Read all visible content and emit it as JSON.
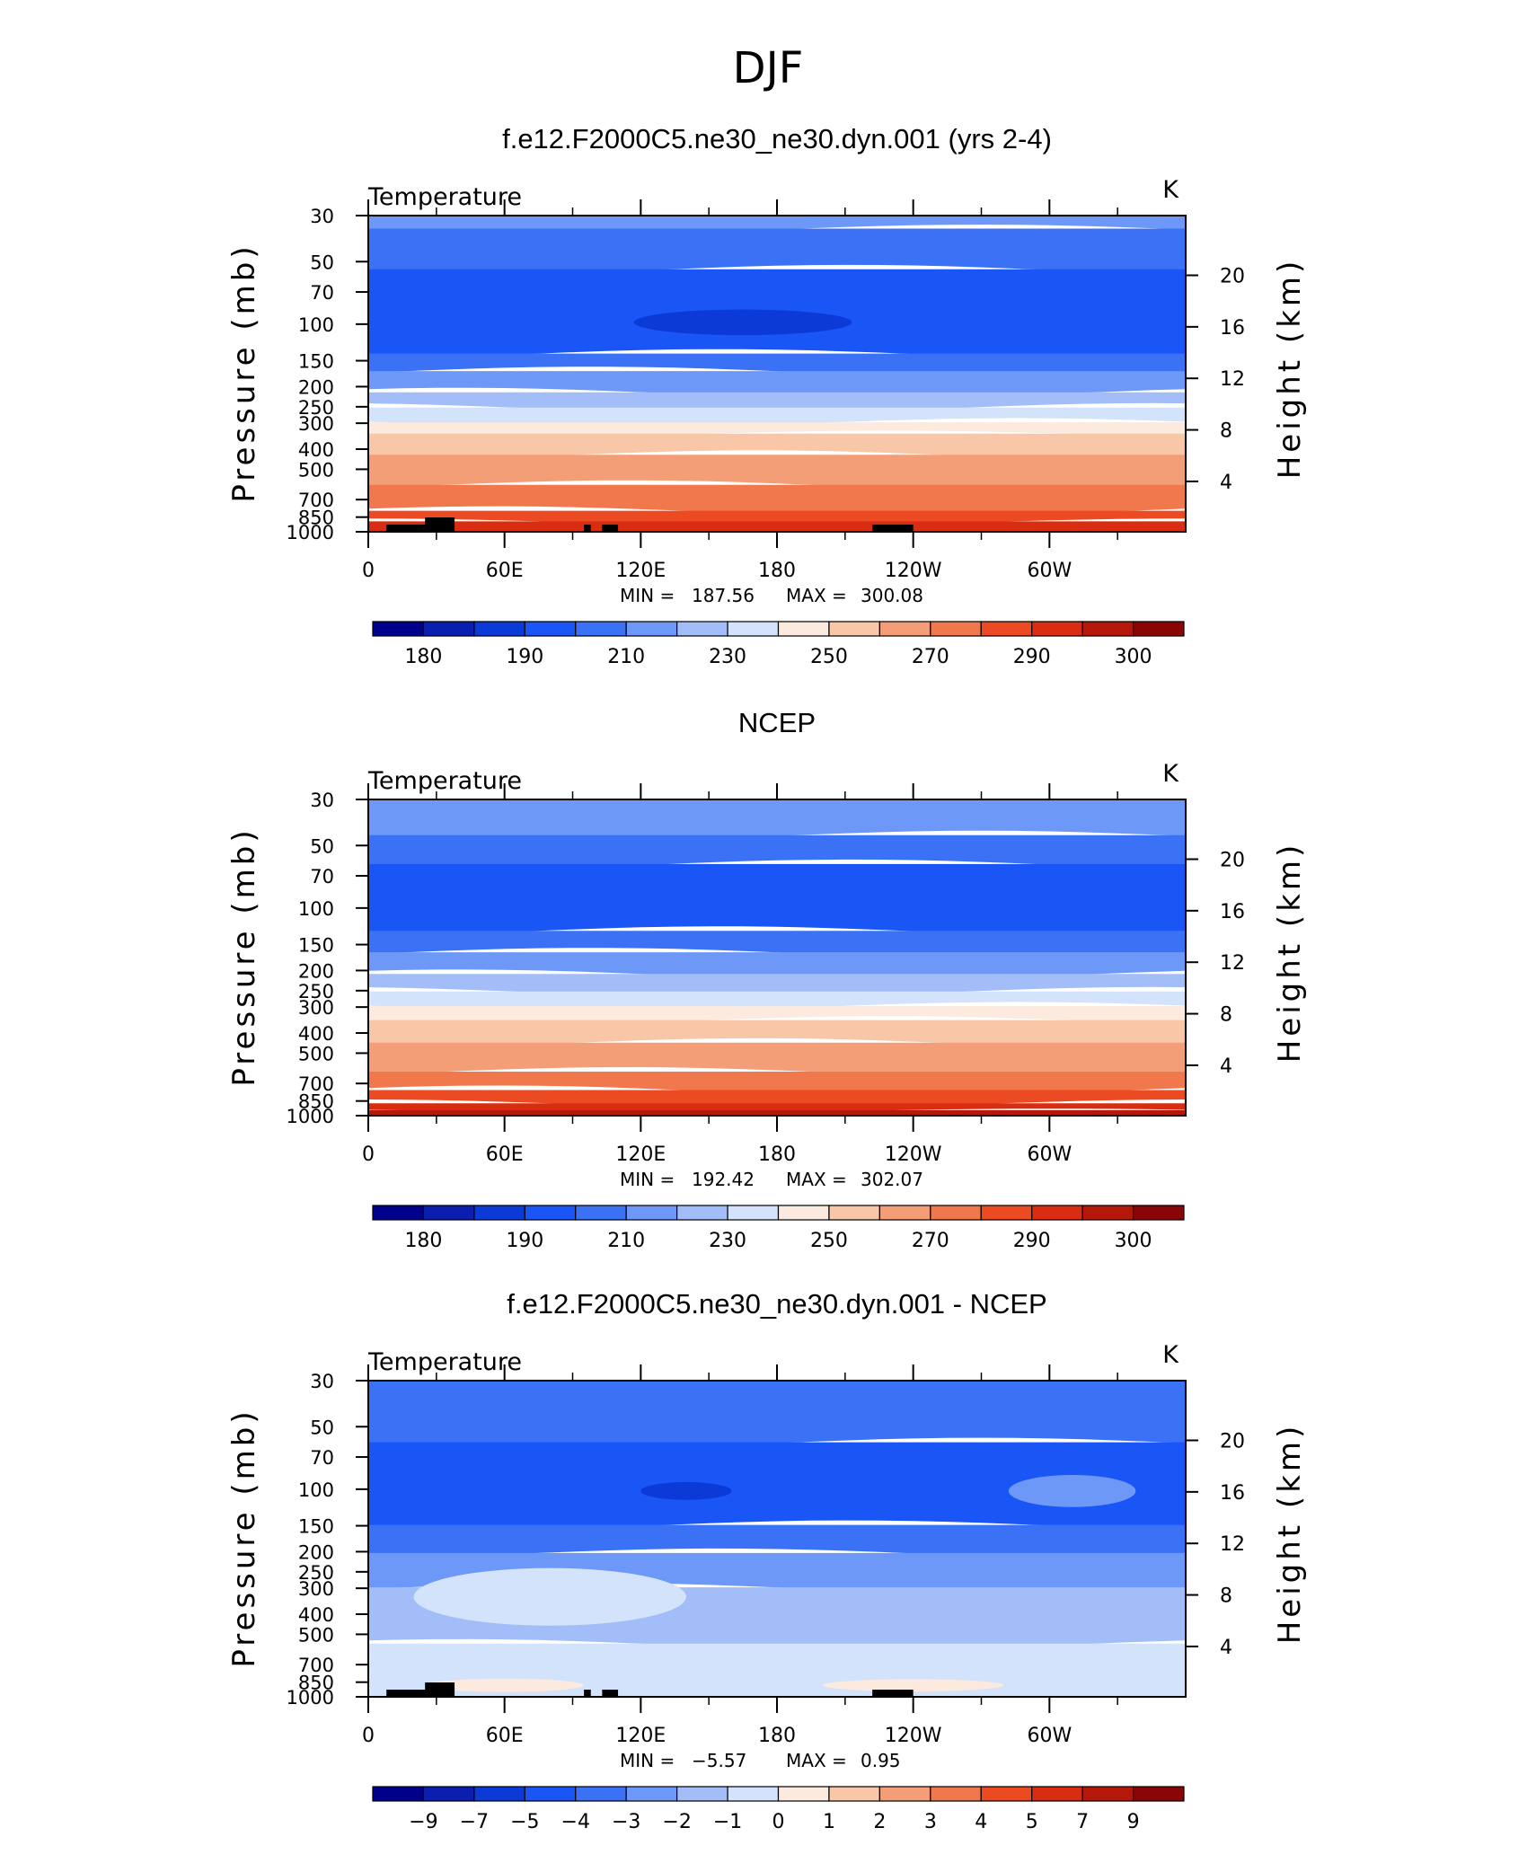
{
  "figure": {
    "title": "DJF"
  },
  "chart_data": [
    {
      "type": "heatmap",
      "title": "f.e12.F2000C5.ne30_ne30.dyn.001 (yrs 2-4)",
      "left_label": "Temperature",
      "right_label": "K",
      "ylabel": "Pressure (mb)",
      "y2label": "Height (km)",
      "x_ticks": [
        "0",
        "60E",
        "120E",
        "180",
        "120W",
        "60W"
      ],
      "y_ticks": [
        "30",
        "50",
        "70",
        "100",
        "150",
        "200",
        "250",
        "300",
        "400",
        "500",
        "700",
        "850",
        "1000"
      ],
      "y2_ticks": [
        "20",
        "16",
        "12",
        "8",
        "4"
      ],
      "stats": {
        "min_label": "MIN =",
        "min": "187.56",
        "max_label": "MAX =",
        "max": "300.08"
      },
      "colorbar": {
        "labels": [
          "180",
          "190",
          "210",
          "230",
          "250",
          "270",
          "290",
          "300"
        ],
        "colors": [
          "#00008c",
          "#0a1fb0",
          "#0b3ad6",
          "#1a55f5",
          "#3b72f5",
          "#6e98f7",
          "#a3bdf9",
          "#d2e3fb",
          "#fbeadd",
          "#f8c7a8",
          "#f49e77",
          "#f1784c",
          "#ec4a22",
          "#d92d12",
          "#b5180a",
          "#8a0505"
        ]
      },
      "bands": [
        {
          "p_bottom": 35,
          "color": "#6e98f7"
        },
        {
          "p_bottom": 55,
          "color": "#3b72f5"
        },
        {
          "p_bottom": 140,
          "color": "#1a55f5"
        },
        {
          "p_bottom": 170,
          "color": "#3b72f5"
        },
        {
          "p_bottom": 215,
          "color": "#6e98f7"
        },
        {
          "p_bottom": 255,
          "color": "#a3bdf9"
        },
        {
          "p_bottom": 300,
          "color": "#d2e3fb"
        },
        {
          "p_bottom": 340,
          "color": "#fbeadd"
        },
        {
          "p_bottom": 430,
          "color": "#f8c7a8"
        },
        {
          "p_bottom": 600,
          "color": "#f49e77"
        },
        {
          "p_bottom": 800,
          "color": "#f1784c"
        },
        {
          "p_bottom": 900,
          "color": "#ec4a22"
        },
        {
          "p_bottom": 1000,
          "color": "#d92d12"
        }
      ],
      "blobs": [
        {
          "lon": 165,
          "p": 98,
          "rlon": 48,
          "dp": 10,
          "color": "#0b3ad6"
        }
      ]
    },
    {
      "type": "heatmap",
      "title": "NCEP",
      "left_label": "Temperature",
      "right_label": "K",
      "ylabel": "Pressure (mb)",
      "y2label": "Height (km)",
      "x_ticks": [
        "0",
        "60E",
        "120E",
        "180",
        "120W",
        "60W"
      ],
      "y_ticks": [
        "30",
        "50",
        "70",
        "100",
        "150",
        "200",
        "250",
        "300",
        "400",
        "500",
        "700",
        "850",
        "1000"
      ],
      "y2_ticks": [
        "20",
        "16",
        "12",
        "8",
        "4"
      ],
      "stats": {
        "min_label": "MIN =",
        "min": "192.42",
        "max_label": "MAX =",
        "max": "302.07"
      },
      "colorbar": {
        "labels": [
          "180",
          "190",
          "210",
          "230",
          "250",
          "270",
          "290",
          "300"
        ],
        "colors": [
          "#00008c",
          "#0a1fb0",
          "#0b3ad6",
          "#1a55f5",
          "#3b72f5",
          "#6e98f7",
          "#a3bdf9",
          "#d2e3fb",
          "#fbeadd",
          "#f8c7a8",
          "#f49e77",
          "#f1784c",
          "#ec4a22",
          "#d92d12",
          "#b5180a",
          "#8a0505"
        ]
      },
      "bands": [
        {
          "p_bottom": 45,
          "color": "#6e98f7"
        },
        {
          "p_bottom": 62,
          "color": "#3b72f5"
        },
        {
          "p_bottom": 130,
          "color": "#1a55f5"
        },
        {
          "p_bottom": 165,
          "color": "#3b72f5"
        },
        {
          "p_bottom": 210,
          "color": "#6e98f7"
        },
        {
          "p_bottom": 255,
          "color": "#a3bdf9"
        },
        {
          "p_bottom": 300,
          "color": "#d2e3fb"
        },
        {
          "p_bottom": 350,
          "color": "#fbeadd"
        },
        {
          "p_bottom": 450,
          "color": "#f8c7a8"
        },
        {
          "p_bottom": 620,
          "color": "#f49e77"
        },
        {
          "p_bottom": 760,
          "color": "#f1784c"
        },
        {
          "p_bottom": 880,
          "color": "#ec4a22"
        },
        {
          "p_bottom": 950,
          "color": "#d92d12"
        },
        {
          "p_bottom": 1000,
          "color": "#b5180a"
        }
      ],
      "blobs": []
    },
    {
      "type": "heatmap",
      "title": "f.e12.F2000C5.ne30_ne30.dyn.001 - NCEP",
      "left_label": "Temperature",
      "right_label": "K",
      "ylabel": "Pressure (mb)",
      "y2label": "Height (km)",
      "x_ticks": [
        "0",
        "60E",
        "120E",
        "180",
        "120W",
        "60W"
      ],
      "y_ticks": [
        "30",
        "50",
        "70",
        "100",
        "150",
        "200",
        "250",
        "300",
        "400",
        "500",
        "700",
        "850",
        "1000"
      ],
      "y2_ticks": [
        "20",
        "16",
        "12",
        "8",
        "4"
      ],
      "stats": {
        "min_label": "MIN =",
        "min": "−5.57",
        "max_label": "MAX =",
        "max": "0.95"
      },
      "colorbar": {
        "labels": [
          "−9",
          "−7",
          "−5",
          "−4",
          "−3",
          "−2",
          "−1",
          "0",
          "1",
          "2",
          "3",
          "4",
          "5",
          "7",
          "9"
        ],
        "colors": [
          "#00008c",
          "#0a1fb0",
          "#0b3ad6",
          "#1a55f5",
          "#3b72f5",
          "#6e98f7",
          "#a3bdf9",
          "#d2e3fb",
          "#fbeadd",
          "#f8c7a8",
          "#f49e77",
          "#f1784c",
          "#ec4a22",
          "#d92d12",
          "#b5180a",
          "#8a0505"
        ]
      },
      "bands": [
        {
          "p_bottom": 60,
          "color": "#3b72f5"
        },
        {
          "p_bottom": 150,
          "color": "#1a55f5"
        },
        {
          "p_bottom": 205,
          "color": "#3b72f5"
        },
        {
          "p_bottom": 300,
          "color": "#6e98f7"
        },
        {
          "p_bottom": 560,
          "color": "#a3bdf9"
        },
        {
          "p_bottom": 1000,
          "color": "#d2e3fb"
        }
      ],
      "blobs": [
        {
          "lon": 140,
          "p": 102,
          "rlon": 20,
          "dp": 6,
          "color": "#0b3ad6"
        },
        {
          "lon": 310,
          "p": 102,
          "rlon": 28,
          "dp": 14,
          "color": "#6e98f7"
        },
        {
          "lon": 80,
          "p": 330,
          "rlon": 60,
          "dp": 90,
          "color": "#d2e3fb"
        },
        {
          "lon": 60,
          "p": 880,
          "rlon": 35,
          "dp": 30,
          "color": "#fbeadd"
        },
        {
          "lon": 240,
          "p": 880,
          "rlon": 40,
          "dp": 25,
          "color": "#fbeadd"
        }
      ]
    }
  ]
}
